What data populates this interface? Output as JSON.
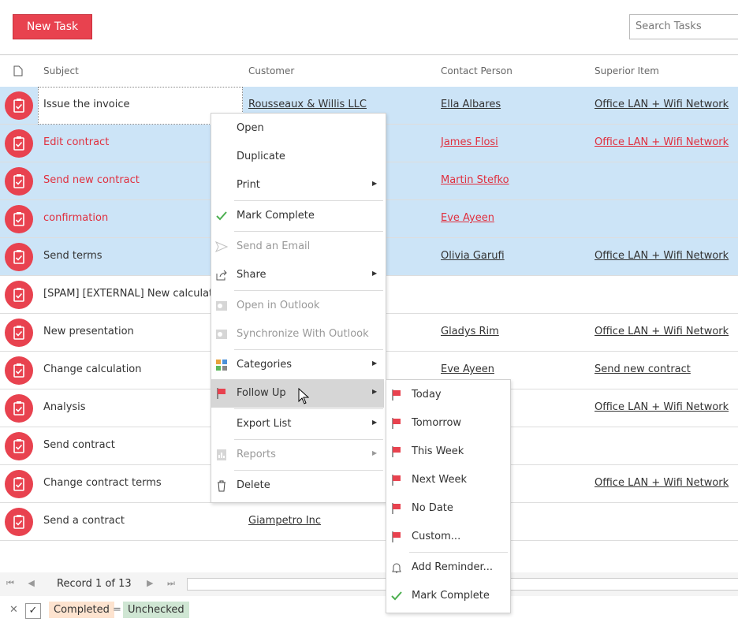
{
  "toolbar": {
    "new_task": "New Task",
    "search_placeholder": "Search Tasks"
  },
  "columns": [
    "Subject",
    "Customer",
    "Contact Person",
    "Superior Item"
  ],
  "rows": [
    {
      "subject": "Issue the invoice",
      "customer": "Rousseaux & Willis LLC",
      "contact": "Ella Albares",
      "superior": "Office LAN + Wifi Network",
      "selected": true,
      "focused": true
    },
    {
      "subject": "Edit contract",
      "contact": "James Flosi",
      "superior": "Office LAN + Wifi Network",
      "selected": true,
      "overdue": true
    },
    {
      "subject": "Send new contract",
      "contact": "Martin Stefko",
      "selected": true,
      "overdue": true
    },
    {
      "subject": "confirmation",
      "contact": "Eve Ayeen",
      "selected": true,
      "overdue": true
    },
    {
      "subject": "Send terms",
      "contact": "Olivia Garufi",
      "superior": "Office LAN + Wifi Network",
      "selected": true
    },
    {
      "subject": "[SPAM] [EXTERNAL] New calculatio"
    },
    {
      "subject": "New presentation",
      "contact": "Gladys Rim",
      "superior": "Office LAN + Wifi Network"
    },
    {
      "subject": "Change calculation",
      "contact": "Eve Ayeen",
      "superior": "Send new contract"
    },
    {
      "subject": "Analysis",
      "superior": "Office LAN + Wifi Network"
    },
    {
      "subject": "Send contract"
    },
    {
      "subject": "Change contract terms",
      "superior": "Office LAN + Wifi Network"
    },
    {
      "subject": "Send a contract",
      "customer": "Giampetro Inc"
    }
  ],
  "context_menu": [
    [
      {
        "label": "Open"
      },
      {
        "label": "Duplicate"
      },
      {
        "label": "Print",
        "submenu": true
      }
    ],
    [
      {
        "label": "Mark Complete",
        "icon": "check"
      }
    ],
    [
      {
        "label": "Send an Email",
        "icon": "send",
        "disabled": true
      },
      {
        "label": "Share",
        "icon": "share",
        "submenu": true
      }
    ],
    [
      {
        "label": "Open in Outlook",
        "icon": "outlook",
        "disabled": true
      },
      {
        "label": "Synchronize With Outlook",
        "icon": "outlook",
        "disabled": true
      }
    ],
    [
      {
        "label": "Categories",
        "icon": "categories",
        "submenu": true
      },
      {
        "label": "Follow Up",
        "icon": "flag",
        "submenu": true,
        "hovered": true
      }
    ],
    [
      {
        "label": "Export List",
        "submenu": true
      }
    ],
    [
      {
        "label": "Reports",
        "icon": "reports",
        "disabled": true,
        "submenu": true
      }
    ],
    [
      {
        "label": "Delete",
        "icon": "delete"
      }
    ]
  ],
  "follow_up_menu": [
    [
      {
        "label": "Today",
        "icon": "flag"
      },
      {
        "label": "Tomorrow",
        "icon": "flag"
      },
      {
        "label": "This Week",
        "icon": "flag"
      },
      {
        "label": "Next Week",
        "icon": "flag"
      },
      {
        "label": "No Date",
        "icon": "flag"
      },
      {
        "label": "Custom...",
        "icon": "flag"
      }
    ],
    [
      {
        "label": "Add Reminder...",
        "icon": "bell"
      },
      {
        "label": "Mark Complete",
        "icon": "check"
      }
    ]
  ],
  "pager": {
    "record": "Record 1 of 13"
  },
  "filter": {
    "field": "Completed",
    "operator": "=",
    "value": "Unchecked"
  }
}
